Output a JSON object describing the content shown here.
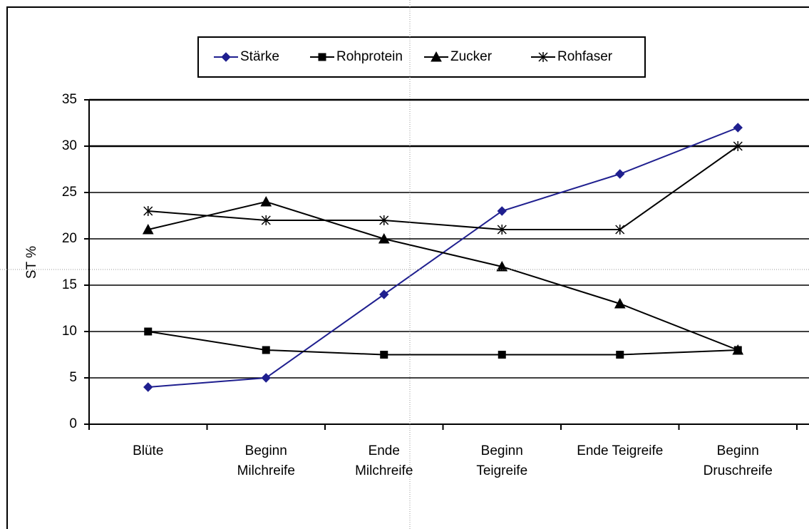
{
  "chart_data": {
    "type": "line",
    "y_label": "ST %",
    "categories": [
      [
        "Blüte"
      ],
      [
        "Beginn",
        "Milchreife"
      ],
      [
        "Ende",
        "Milchreife"
      ],
      [
        "Beginn",
        "Teigreife"
      ],
      [
        "Ende Teigreife"
      ],
      [
        "Beginn",
        "Druschreife"
      ]
    ],
    "series": [
      {
        "name": "Stärke",
        "color": "#1f1f8f",
        "marker": "diamond",
        "values": [
          4,
          5,
          14,
          23,
          27,
          32
        ]
      },
      {
        "name": "Rohprotein",
        "color": "#000000",
        "marker": "square",
        "values": [
          10,
          8,
          7.5,
          7.5,
          7.5,
          8
        ]
      },
      {
        "name": "Zucker",
        "color": "#000000",
        "marker": "triangle",
        "values": [
          21,
          24,
          20,
          17,
          13,
          8
        ]
      },
      {
        "name": "Rohfaser",
        "color": "#000000",
        "marker": "asterisk",
        "values": [
          23,
          22,
          22,
          21,
          21,
          30
        ]
      }
    ],
    "ylim": [
      0,
      35
    ],
    "yticks": [
      0,
      5,
      10,
      15,
      20,
      25,
      30,
      35
    ],
    "grid": true,
    "legend": "top"
  }
}
